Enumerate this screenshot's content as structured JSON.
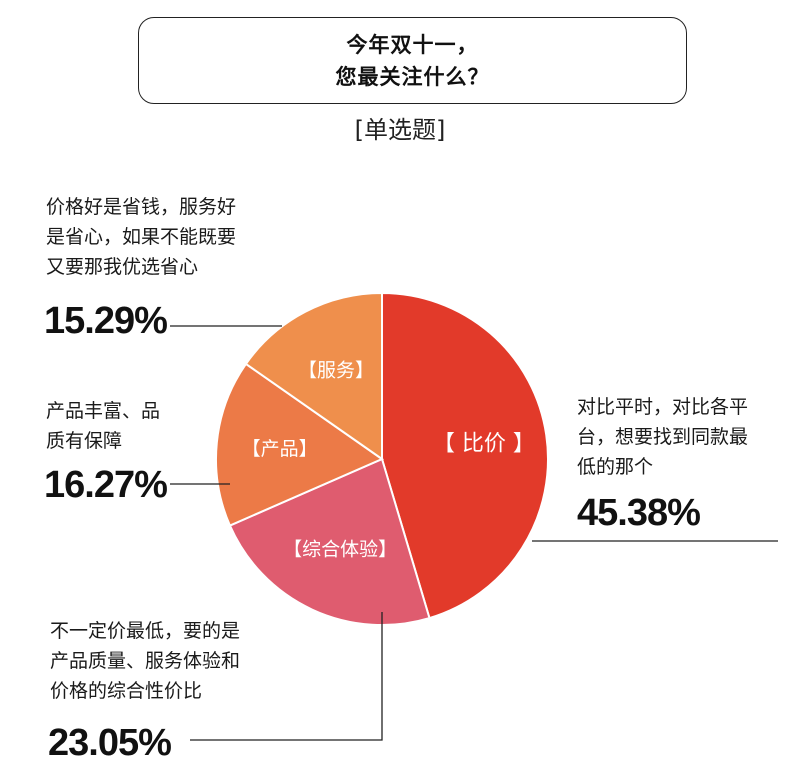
{
  "header": {
    "title_line1": "今年双十一，",
    "title_line2": "您最关注什么？",
    "subtitle": "[单选题]"
  },
  "chart_data": {
    "type": "pie",
    "title": "今年双十一，您最关注什么？",
    "subtitle": "[单选题]",
    "slices": [
      {
        "label": "【 比价 】",
        "value": 45.38,
        "value_label": "45.38%",
        "desc": [
          "对比平时，对比各平",
          "台，想要找到同款最",
          "低的那个"
        ],
        "color": "#E23A2A"
      },
      {
        "label": "【综合体验】",
        "value": 23.05,
        "value_label": "23.05%",
        "desc": [
          "不一定价最低，要的是",
          "产品质量、服务体验和",
          "价格的综合性价比"
        ],
        "color": "#DF5C6F"
      },
      {
        "label": "【产品】",
        "value": 16.27,
        "value_label": "16.27%",
        "desc": [
          "产品丰富、品",
          "质有保障"
        ],
        "color": "#EC7A47"
      },
      {
        "label": "【服务】",
        "value": 15.29,
        "value_label": "15.29%",
        "desc": [
          "价格好是省钱，服务好",
          "是省心，如果不能既要",
          "又要那我优选省心"
        ],
        "color": "#EF8F4C"
      }
    ]
  }
}
